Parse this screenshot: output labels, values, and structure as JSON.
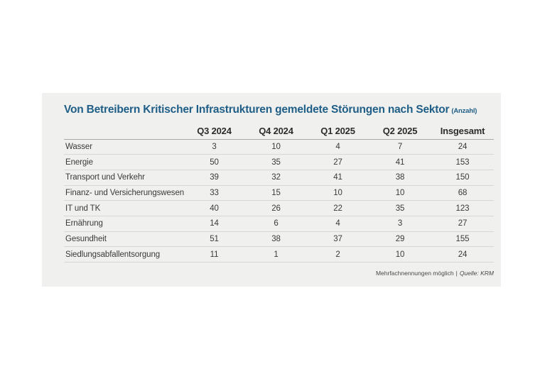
{
  "title": {
    "text": "Von Betreibern Kritischer Infrastrukturen gemeldete Störungen nach Sektor",
    "unit_note": "(Anzahl)"
  },
  "chart_data": {
    "type": "table",
    "title": "Von Betreibern Kritischer Infrastrukturen gemeldete Störungen nach Sektor",
    "unit": "Anzahl",
    "columns": [
      "Q3 2024",
      "Q4 2024",
      "Q1 2025",
      "Q2 2025",
      "Insgesamt"
    ],
    "rows": [
      {
        "label": "Wasser",
        "values": [
          3,
          10,
          4,
          7,
          24
        ]
      },
      {
        "label": "Energie",
        "values": [
          50,
          35,
          27,
          41,
          153
        ]
      },
      {
        "label": "Transport und Verkehr",
        "values": [
          39,
          32,
          41,
          38,
          150
        ]
      },
      {
        "label": "Finanz- und Versicherungswesen",
        "values": [
          33,
          15,
          10,
          10,
          68
        ]
      },
      {
        "label": "IT und TK",
        "values": [
          40,
          26,
          22,
          35,
          123
        ]
      },
      {
        "label": "Ernährung",
        "values": [
          14,
          6,
          4,
          3,
          27
        ]
      },
      {
        "label": "Gesundheit",
        "values": [
          51,
          38,
          37,
          29,
          155
        ]
      },
      {
        "label": "Siedlungsabfallentsorgung",
        "values": [
          11,
          1,
          2,
          10,
          24
        ]
      }
    ],
    "note": "Mehrfachnennungen möglich",
    "source": "Quelle: KRM",
    "legend_position": "none",
    "grid": "horizontal-row-separators"
  },
  "footer": {
    "note": "Mehrfachnennungen möglich",
    "separator": "|",
    "source": "Quelle: KRM"
  },
  "colors": {
    "title_blue": "#1f5e87",
    "panel_bg": "#f0f0ee",
    "row_line": "#d7d7d5",
    "header_line": "#aaaaa8",
    "text": "#3a3a3a",
    "header_text": "#2c2c2c",
    "footnote_text": "#4a4a4a"
  }
}
